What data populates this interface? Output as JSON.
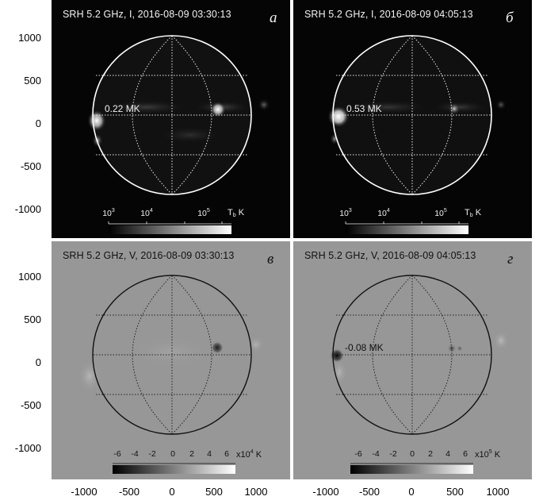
{
  "figure": {
    "axis_ticks": [
      "1000",
      "500",
      "0",
      "-500",
      "-1000"
    ],
    "axis_values": [
      1000,
      500,
      0,
      -500,
      -1000
    ],
    "x_tick_values": [
      -1000,
      -500,
      0,
      500,
      1000
    ],
    "x_ticks": [
      "-1000",
      "-500",
      "0",
      "500",
      "1000"
    ]
  },
  "panels": {
    "a": {
      "title": "SRH 5.2 GHz, I, 2016-08-09 03:30:13",
      "letter": "а",
      "annotation": "0.22 MK",
      "colorbar": {
        "ticks_base": [
          "10",
          "10",
          "10"
        ],
        "ticks_exp": [
          "3",
          "4",
          "5"
        ],
        "unit_main": "T",
        "unit_sub": "b",
        "unit_suffix": " K"
      }
    },
    "b": {
      "title": "SRH 5.2 GHz, I, 2016-08-09 04:05:13",
      "letter": "б",
      "annotation": "0.53 MK",
      "colorbar": {
        "ticks_base": [
          "10",
          "10",
          "10"
        ],
        "ticks_exp": [
          "3",
          "4",
          "5"
        ],
        "unit_main": "T",
        "unit_sub": "b",
        "unit_suffix": " K"
      }
    },
    "c": {
      "title": "SRH 5.2 GHz, V, 2016-08-09 03:30:13",
      "letter": "в",
      "annotation": "",
      "colorbar": {
        "ticks": [
          "-6",
          "-4",
          "-2",
          "0",
          "2",
          "4",
          "6"
        ],
        "unit_prefix": "x10",
        "unit_exp": "4",
        "unit_suffix": " K"
      }
    },
    "d": {
      "title": "SRH 5.2 GHz, V, 2016-08-09 04:05:13",
      "letter": "г",
      "annotation": "-0.08 MK",
      "colorbar": {
        "ticks": [
          "-6",
          "-4",
          "-2",
          "0",
          "2",
          "4",
          "6"
        ],
        "unit_prefix": "x10",
        "unit_exp": "5",
        "unit_suffix": " K"
      }
    }
  },
  "colors": {
    "intensity_background": "#050505",
    "polarization_background": "#979797",
    "limb_dark": "#ffffff",
    "limb_light": "#111111"
  }
}
